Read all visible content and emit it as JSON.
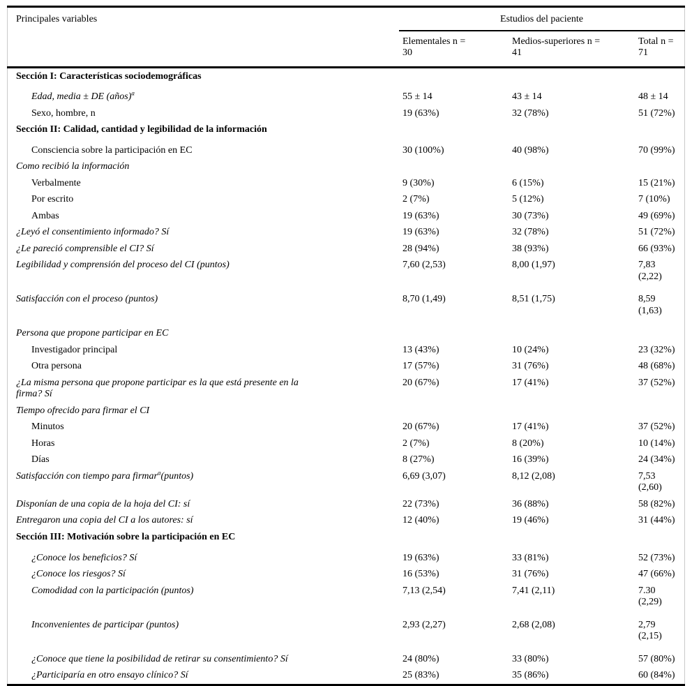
{
  "table": {
    "header": {
      "variables_label": "Principales variables",
      "group_label": "Estudios del paciente",
      "columns": [
        "Elementales n =\n30",
        "Medios-superiores n =\n41",
        "Total n = 71"
      ]
    },
    "rows": [
      {
        "type": "section",
        "label": "Sección I: Características sociodemográficas",
        "values": [
          "",
          "",
          ""
        ]
      },
      {
        "type": "item",
        "italic": true,
        "indent": true,
        "label_parts": [
          [
            "t",
            "Edad, media ± DE (años)"
          ],
          [
            "sup",
            "a"
          ]
        ],
        "values": [
          "55 ± 14",
          "43 ± 14",
          "48 ± 14"
        ]
      },
      {
        "type": "item",
        "italic": false,
        "indent": true,
        "label": "Sexo, hombre, n",
        "values": [
          "19 (63%)",
          "32 (78%)",
          "51 (72%)"
        ]
      },
      {
        "type": "section",
        "label": "Sección II: Calidad, cantidad y legibilidad de la información",
        "values": [
          "",
          "",
          ""
        ]
      },
      {
        "type": "item",
        "italic": false,
        "indent": true,
        "label": "Consciencia sobre la participación en EC",
        "values": [
          "30 (100%)",
          "40 (98%)",
          "70 (99%)"
        ]
      },
      {
        "type": "item",
        "italic": true,
        "indent": false,
        "label": "Como recibió la información",
        "values": [
          "",
          "",
          ""
        ]
      },
      {
        "type": "item",
        "italic": false,
        "indent": true,
        "label": "Verbalmente",
        "values": [
          "9 (30%)",
          "6 (15%)",
          "15 (21%)"
        ]
      },
      {
        "type": "item",
        "italic": false,
        "indent": true,
        "label": "Por escrito",
        "values": [
          "2 (7%)",
          "5 (12%)",
          "7 (10%)"
        ]
      },
      {
        "type": "item",
        "italic": false,
        "indent": true,
        "label": "Ambas",
        "values": [
          "19 (63%)",
          "30 (73%)",
          "49 (69%)"
        ]
      },
      {
        "type": "item",
        "italic": true,
        "indent": false,
        "label": "¿Leyó el consentimiento informado? Sí",
        "values": [
          "19 (63%)",
          "32 (78%)",
          "51 (72%)"
        ]
      },
      {
        "type": "item",
        "italic": true,
        "indent": false,
        "label": "¿Le pareció comprensible el CI? Sí",
        "values": [
          "28 (94%)",
          "38 (93%)",
          "66 (93%)"
        ]
      },
      {
        "type": "item",
        "italic": true,
        "indent": false,
        "gap": true,
        "label": "Legibilidad y comprensión del proceso del CI (puntos)",
        "values": [
          "7,60 (2,53)",
          "8,00 (1,97)",
          "7,83\n(2,22)"
        ]
      },
      {
        "type": "item",
        "italic": true,
        "indent": false,
        "gap": true,
        "label": "Satisfacción con el proceso (puntos)",
        "values": [
          "8,70 (1,49)",
          "8,51 (1,75)",
          "8,59\n(1,63)"
        ]
      },
      {
        "type": "item",
        "italic": true,
        "indent": false,
        "label": "Persona que propone participar en EC",
        "values": [
          "",
          "",
          ""
        ]
      },
      {
        "type": "item",
        "italic": false,
        "indent": true,
        "label": "Investigador principal",
        "values": [
          "13 (43%)",
          "10 (24%)",
          "23 (32%)"
        ]
      },
      {
        "type": "item",
        "italic": false,
        "indent": true,
        "label": "Otra persona",
        "values": [
          "17 (57%)",
          "31 (76%)",
          "48 (68%)"
        ]
      },
      {
        "type": "item",
        "italic": true,
        "indent": false,
        "label": "¿La misma persona que propone participar es la que está presente en la\nfirma? Sí",
        "values": [
          "20 (67%)",
          "17 (41%)",
          "37 (52%)"
        ]
      },
      {
        "type": "item",
        "italic": true,
        "indent": false,
        "label": "Tiempo ofrecido para firmar el CI",
        "values": [
          "",
          "",
          ""
        ]
      },
      {
        "type": "item",
        "italic": false,
        "indent": true,
        "label": "Minutos",
        "values": [
          "20 (67%)",
          "17 (41%)",
          "37 (52%)"
        ]
      },
      {
        "type": "item",
        "italic": false,
        "indent": true,
        "label": "Horas",
        "values": [
          "2 (7%)",
          "8 (20%)",
          "10 (14%)"
        ]
      },
      {
        "type": "item",
        "italic": false,
        "indent": true,
        "label": "Días",
        "values": [
          "8 (27%)",
          "16 (39%)",
          "24 (34%)"
        ]
      },
      {
        "type": "item",
        "italic": true,
        "indent": false,
        "label_parts": [
          [
            "t",
            "Satisfacción con tiempo para firmar"
          ],
          [
            "sup",
            "a"
          ],
          [
            "t",
            "(puntos)"
          ]
        ],
        "values": [
          "6,69 (3,07)",
          "8,12 (2,08)",
          "7,53\n(2,60)"
        ]
      },
      {
        "type": "item",
        "italic": true,
        "indent": false,
        "label": "Disponían de una copia de la hoja del CI: sí",
        "values": [
          "22 (73%)",
          "36 (88%)",
          "58 (82%)"
        ]
      },
      {
        "type": "item",
        "italic": true,
        "indent": false,
        "label": "Entregaron una copia del CI a los autores: sí",
        "values": [
          "12 (40%)",
          "19 (46%)",
          "31 (44%)"
        ]
      },
      {
        "type": "section",
        "label": "Sección III: Motivación sobre la participación en EC",
        "values": [
          "",
          "",
          ""
        ]
      },
      {
        "type": "item",
        "italic": true,
        "indent": true,
        "label": "¿Conoce los beneficios? Sí",
        "values": [
          "19 (63%)",
          "33 (81%)",
          "52 (73%)"
        ]
      },
      {
        "type": "item",
        "italic": true,
        "indent": true,
        "label": "¿Conoce los riesgos? Sí",
        "values": [
          "16 (53%)",
          "31 (76%)",
          "47 (66%)"
        ]
      },
      {
        "type": "item",
        "italic": true,
        "indent": true,
        "gap": true,
        "label": "Comodidad con la participación (puntos)",
        "values": [
          "7,13 (2,54)",
          "7,41 (2,11)",
          "7.30\n(2,29)"
        ]
      },
      {
        "type": "item",
        "italic": true,
        "indent": true,
        "gap": true,
        "label": "Inconvenientes de participar (puntos)",
        "values": [
          "2,93 (2,27)",
          "2,68 (2,08)",
          "2,79\n(2,15)"
        ]
      },
      {
        "type": "item",
        "italic": true,
        "indent": true,
        "label": "¿Conoce que tiene la posibilidad de retirar su consentimiento? Sí",
        "values": [
          "24 (80%)",
          "33 (80%)",
          "57 (80%)"
        ]
      },
      {
        "type": "item",
        "italic": true,
        "indent": true,
        "label": "¿Participaría en otro ensayo clínico? Sí",
        "values": [
          "25 (83%)",
          "35 (86%)",
          "60 (84%)"
        ]
      }
    ]
  }
}
